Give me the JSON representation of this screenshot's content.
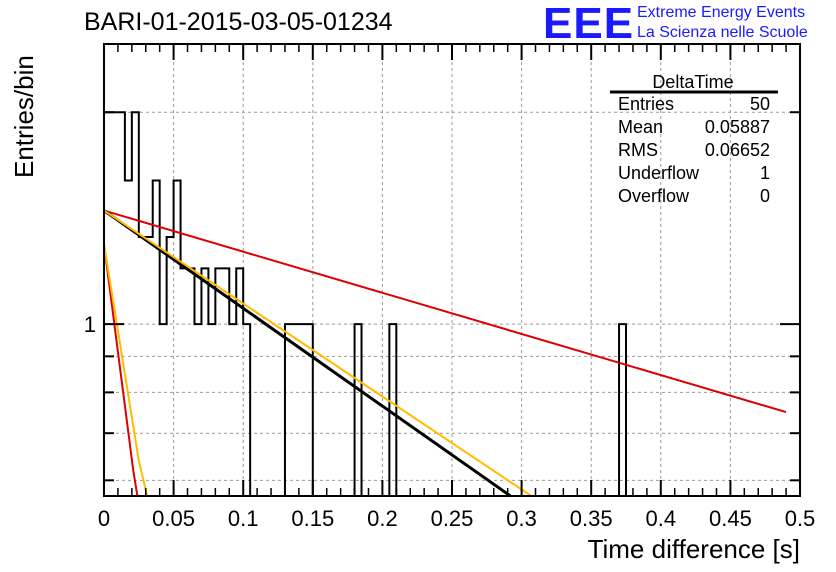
{
  "title": "BARI-01-2015-03-05-01234",
  "logo": {
    "mark": "EEE",
    "line1": "Extreme Energy Events",
    "line2": "La Scienza nelle Scuole",
    "color": "#1a1aff"
  },
  "chart_data": {
    "type": "histogram",
    "xlabel": "Time difference [s]",
    "ylabel": "Entries/bin",
    "xlim": [
      0,
      0.5
    ],
    "ylim": [
      0.57,
      2.5
    ],
    "y_scale": "log",
    "grid": true,
    "x_tick_labels": [
      "0",
      "0.05",
      "0.1",
      "0.15",
      "0.2",
      "0.25",
      "0.3",
      "0.35",
      "0.4",
      "0.45",
      "0.5"
    ],
    "x_ticks": [
      0,
      0.05,
      0.1,
      0.15,
      0.2,
      0.25,
      0.3,
      0.35,
      0.4,
      0.45,
      0.5
    ],
    "y_tick_labels": [
      "1"
    ],
    "y_ticks": [
      1
    ],
    "bin_width": 0.005,
    "bins": [
      {
        "x": 0.0,
        "y": 2
      },
      {
        "x": 0.005,
        "y": 2
      },
      {
        "x": 0.01,
        "y": 2
      },
      {
        "x": 0.015,
        "y": 1.6
      },
      {
        "x": 0.02,
        "y": 2
      },
      {
        "x": 0.025,
        "y": 1.33
      },
      {
        "x": 0.03,
        "y": 1.33
      },
      {
        "x": 0.035,
        "y": 1.6
      },
      {
        "x": 0.04,
        "y": 1
      },
      {
        "x": 0.045,
        "y": 1.33
      },
      {
        "x": 0.05,
        "y": 1.6
      },
      {
        "x": 0.055,
        "y": 1.2
      },
      {
        "x": 0.06,
        "y": 1.2
      },
      {
        "x": 0.065,
        "y": 1
      },
      {
        "x": 0.07,
        "y": 1.2
      },
      {
        "x": 0.075,
        "y": 1
      },
      {
        "x": 0.08,
        "y": 1.2
      },
      {
        "x": 0.085,
        "y": 1.2
      },
      {
        "x": 0.09,
        "y": 1
      },
      {
        "x": 0.095,
        "y": 1.2
      },
      {
        "x": 0.1,
        "y": 1
      },
      {
        "x": 0.13,
        "y": 1
      },
      {
        "x": 0.135,
        "y": 1
      },
      {
        "x": 0.14,
        "y": 1
      },
      {
        "x": 0.145,
        "y": 1
      },
      {
        "x": 0.18,
        "y": 1
      },
      {
        "x": 0.205,
        "y": 1
      },
      {
        "x": 0.37,
        "y": 1
      }
    ],
    "series": [
      {
        "x": [
          0.0,
          0.49
        ],
        "y": [
          1.45,
          0.75
        ],
        "color": "#dd0000"
      },
      {
        "x": [
          0.0,
          0.292
        ],
        "y": [
          1.45,
          0.57
        ],
        "color": "#000000"
      },
      {
        "x": [
          0.0,
          0.307
        ],
        "y": [
          1.45,
          0.57
        ],
        "color": "#ffbb00"
      },
      {
        "x": [
          0.0,
          0.021,
          0.024
        ],
        "y": [
          1.3,
          0.62,
          0.57
        ],
        "color": "#dd0000"
      },
      {
        "x": [
          0.0,
          0.025,
          0.031
        ],
        "y": [
          1.3,
          0.64,
          0.57
        ],
        "color": "#ffbb00"
      }
    ],
    "stats": {
      "name": "DeltaTime",
      "rows": [
        {
          "label": "Entries",
          "value": "50"
        },
        {
          "label": "Mean",
          "value": "0.05887"
        },
        {
          "label": "RMS",
          "value": "0.06652"
        },
        {
          "label": "Underflow",
          "value": "1"
        },
        {
          "label": "Overflow",
          "value": "0"
        }
      ]
    }
  }
}
